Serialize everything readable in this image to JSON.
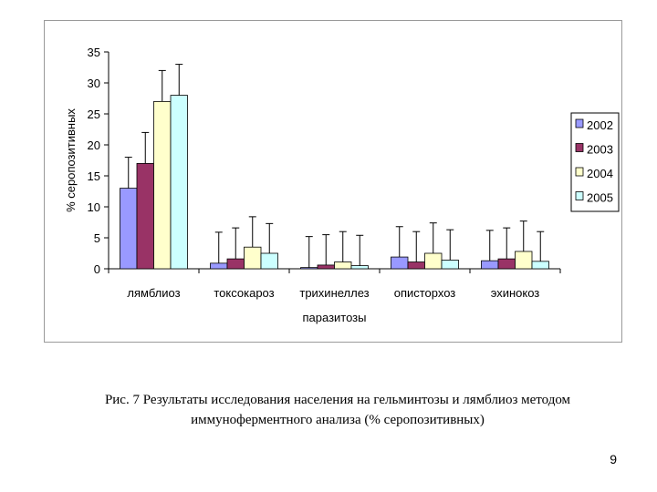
{
  "chart_data": {
    "type": "bar",
    "title": "",
    "xlabel": "паразитозы",
    "ylabel": "% серопозитивных",
    "ylim": [
      0,
      35
    ],
    "yticks": [
      "0",
      "5",
      "10",
      "15",
      "20",
      "25",
      "30",
      "35"
    ],
    "grid": false,
    "legend_position": "right",
    "error_bars": true,
    "categories": [
      "лямблиоз",
      "токсокароз",
      "трихинеллез",
      "описторхоз",
      "эхинококоз"
    ],
    "category_labels": [
      "лямблиоз",
      "токсокароз",
      "трихинеллез",
      "описторхоз",
      "эхинокоз"
    ],
    "series": [
      {
        "name": "2002",
        "color": "#9999ff",
        "values": [
          13,
          0.9,
          0.2,
          1.9,
          1.3
        ],
        "error_upper": [
          18,
          5.9,
          5.2,
          6.8,
          6.2
        ]
      },
      {
        "name": "2003",
        "color": "#993366",
        "values": [
          17,
          1.6,
          0.6,
          1.1,
          1.6
        ],
        "error_upper": [
          22,
          6.6,
          5.5,
          6.0,
          6.6
        ]
      },
      {
        "name": "2004",
        "color": "#ffffcc",
        "values": [
          27,
          3.5,
          1.1,
          2.5,
          2.8
        ],
        "error_upper": [
          32,
          8.4,
          6.0,
          7.4,
          7.7
        ]
      },
      {
        "name": "2005",
        "color": "#ccffff",
        "values": [
          28,
          2.5,
          0.5,
          1.4,
          1.2
        ],
        "error_upper": [
          33,
          7.3,
          5.4,
          6.3,
          6.0
        ]
      }
    ]
  },
  "caption": {
    "line1": "Рис. 7 Результаты исследования населения на гельминтозы и лямблиоз методом",
    "line2": "иммуноферментного анализа (% серопозитивных)"
  },
  "page_number": "9"
}
